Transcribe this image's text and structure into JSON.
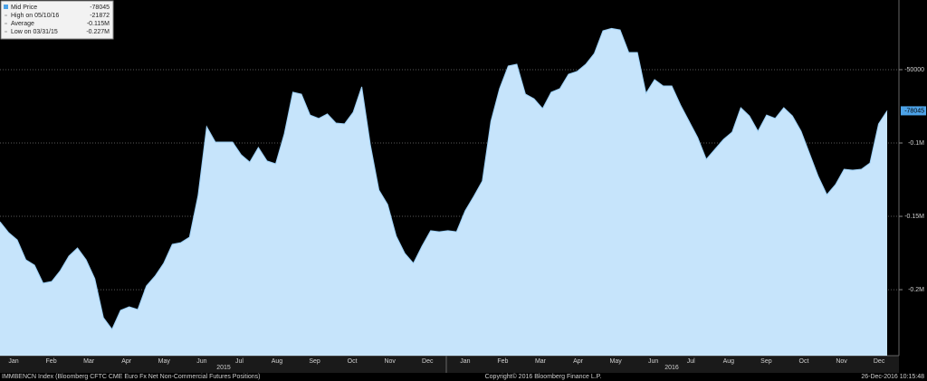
{
  "chart_data": {
    "type": "area",
    "title": "IMMBENCN Index (Bloomberg CFTC CME Euro Fx Net Non-Commercial Futures Positions)",
    "copyright": "Copyright© 2016 Bloomberg Finance L.P.",
    "timestamp": "26-Dec-2016 10:15:48",
    "months": [
      "Jan",
      "Feb",
      "Mar",
      "Apr",
      "May",
      "Jun",
      "Jul",
      "Aug",
      "Sep",
      "Oct",
      "Nov",
      "Dec",
      "Jan",
      "Feb",
      "Mar",
      "Apr",
      "May",
      "Jun",
      "Jul",
      "Aug",
      "Sep",
      "Oct",
      "Nov",
      "Dec"
    ],
    "years": [
      "2015",
      "2016"
    ],
    "series": [
      {
        "name": "Mid Price",
        "color": "#9ccff5",
        "fill": "#c6e4fb",
        "values": [
          -153700,
          -161100,
          -166000,
          -179600,
          -183300,
          -195600,
          -194400,
          -187000,
          -177100,
          -171600,
          -179600,
          -192500,
          -219000,
          -227000,
          -214100,
          -211700,
          -213500,
          -197500,
          -190700,
          -182000,
          -169100,
          -167900,
          -164200,
          -135800,
          -88900,
          -99400,
          -99400,
          -99400,
          -108000,
          -113000,
          -103100,
          -112300,
          -114200,
          -93800,
          -65400,
          -66700,
          -80900,
          -83300,
          -80200,
          -86400,
          -87000,
          -79000,
          -61700,
          -101200,
          -132100,
          -141900,
          -163500,
          -175300,
          -182000,
          -170300,
          -159800,
          -160500,
          -159800,
          -160500,
          -146300,
          -136400,
          -125900,
          -85200,
          -63000,
          -47500,
          -46300,
          -66700,
          -69800,
          -76500,
          -65400,
          -63000,
          -53100,
          -51200,
          -46300,
          -38900,
          -23500,
          -21872,
          -22900,
          -38300,
          -38300,
          -66100,
          -56800,
          -61100,
          -61100,
          -74100,
          -85200,
          -96300,
          -111100,
          -104300,
          -97500,
          -92600,
          -75900,
          -81500,
          -92000,
          -80900,
          -83300,
          -75900,
          -81500,
          -92000,
          -107400,
          -122800,
          -135200,
          -128400,
          -117900,
          -118500,
          -117900,
          -113600,
          -87000,
          -78045
        ]
      }
    ],
    "stats": [
      {
        "name": "Mid Price",
        "value": -78045
      },
      {
        "name": "High on 05/10/16",
        "value": -21872
      },
      {
        "name": "Average",
        "value": -115000,
        "value_label": "-0.115M"
      },
      {
        "name": "Low on 03/31/15",
        "value": -227000,
        "value_label": "-0.227M"
      }
    ],
    "ylim": [
      -245000,
      -2500
    ],
    "yticks": [
      -50000,
      {
        "value": -100000,
        "label": "-0.1M"
      },
      {
        "value": -150000,
        "label": "-0.15M"
      },
      {
        "value": -200000,
        "label": "-0.2M"
      }
    ],
    "grid": true
  }
}
